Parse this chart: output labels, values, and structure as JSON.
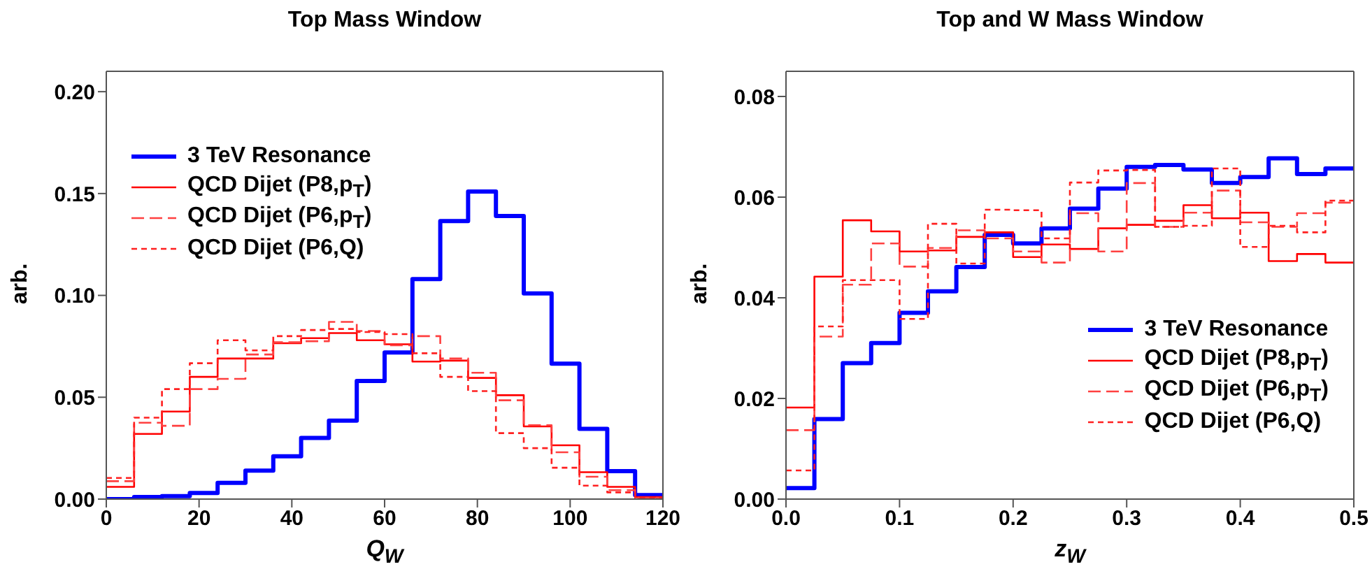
{
  "chart_data": [
    {
      "type": "histogram",
      "title": "Top Mass Window",
      "xlabel": "Q$_{W}$",
      "ylabel": "arb.",
      "bins": [
        0,
        6,
        12,
        18,
        24,
        30,
        36,
        42,
        48,
        54,
        60,
        66,
        72,
        78,
        84,
        90,
        96,
        102,
        108,
        114,
        120
      ],
      "series": [
        {
          "name": "3 TeV Resonance",
          "color": "#0000ff",
          "line_style": "solid",
          "values": [
            0.0,
            0.001,
            0.0015,
            0.003,
            0.008,
            0.014,
            0.021,
            0.03,
            0.0385,
            0.058,
            0.072,
            0.108,
            0.1365,
            0.151,
            0.139,
            0.101,
            0.0665,
            0.0345,
            0.0137,
            0.002
          ]
        },
        {
          "name": "QCD Dijet (P8,p$_{T}$)",
          "color": "#ff0000",
          "line_style": "solid",
          "values": [
            0.006,
            0.032,
            0.043,
            0.06,
            0.069,
            0.069,
            0.0765,
            0.079,
            0.0815,
            0.078,
            0.076,
            0.0675,
            0.068,
            0.0595,
            0.051,
            0.0357,
            0.0264,
            0.0132,
            0.006,
            0.001
          ]
        },
        {
          "name": "QCD Dijet (P6,p$_{T}$)",
          "color": "#ff4040",
          "line_style": "dashed",
          "values": [
            0.0088,
            0.0375,
            0.036,
            0.054,
            0.059,
            0.071,
            0.077,
            0.0775,
            0.087,
            0.0825,
            0.0755,
            0.08,
            0.069,
            0.062,
            0.0485,
            0.0363,
            0.023,
            0.011,
            0.0044,
            0.0007
          ]
        },
        {
          "name": "QCD Dijet (P6,Q)",
          "color": "#ff2020",
          "line_style": "dotted",
          "values": [
            0.0104,
            0.04,
            0.054,
            0.0667,
            0.078,
            0.073,
            0.08,
            0.083,
            0.0835,
            0.082,
            0.081,
            0.0716,
            0.06,
            0.053,
            0.0324,
            0.025,
            0.0154,
            0.0066,
            0.0033,
            0.0007
          ]
        }
      ],
      "xlim": [
        0,
        120
      ],
      "xticks": [
        0,
        20,
        40,
        60,
        80,
        100,
        120
      ],
      "ylim": [
        0,
        0.21
      ],
      "yticks": [
        {
          "value": 0,
          "label": "0.00"
        },
        {
          "value": 0.05,
          "label": "0.05"
        },
        {
          "value": 0.1,
          "label": "0.10"
        },
        {
          "value": 0.15,
          "label": "0.15"
        },
        {
          "value": 0.2,
          "label": "0.20"
        }
      ],
      "legend": "top left",
      "grid": false
    },
    {
      "type": "histogram",
      "title": "Top and W Mass Window",
      "xlabel": "z$_{W}$",
      "ylabel": "arb.",
      "bins": [
        0,
        0.025,
        0.05,
        0.075,
        0.1,
        0.125,
        0.15,
        0.175,
        0.2,
        0.225,
        0.25,
        0.275,
        0.3,
        0.325,
        0.35,
        0.375,
        0.4,
        0.425,
        0.45,
        0.475,
        0.5
      ],
      "series": [
        {
          "name": "3 TeV Resonance",
          "color": "#0000ff",
          "line_style": "solid",
          "values": [
            0.0022,
            0.0159,
            0.027,
            0.031,
            0.037,
            0.0413,
            0.0461,
            0.0525,
            0.0508,
            0.0538,
            0.0577,
            0.0617,
            0.066,
            0.0664,
            0.0655,
            0.0628,
            0.064,
            0.0677,
            0.0646,
            0.0657
          ]
        },
        {
          "name": "QCD Dijet (P8,p$_{T}$)",
          "color": "#ff0000",
          "line_style": "solid",
          "values": [
            0.0182,
            0.0442,
            0.0554,
            0.0532,
            0.0492,
            0.0494,
            0.0521,
            0.053,
            0.0481,
            0.0506,
            0.0497,
            0.0538,
            0.0545,
            0.0553,
            0.0584,
            0.0558,
            0.0569,
            0.0473,
            0.0487,
            0.047
          ]
        },
        {
          "name": "QCD Dijet (P6,p$_{T}$)",
          "color": "#ff4040",
          "line_style": "dashed",
          "values": [
            0.0137,
            0.0323,
            0.0426,
            0.0508,
            0.0462,
            0.0499,
            0.0534,
            0.0518,
            0.0492,
            0.047,
            0.0568,
            0.0492,
            0.0628,
            0.0541,
            0.0569,
            0.0613,
            0.055,
            0.0541,
            0.0568,
            0.0589
          ]
        },
        {
          "name": "QCD Dijet (P6,Q)",
          "color": "#ff2020",
          "line_style": "dotted",
          "values": [
            0.0057,
            0.0343,
            0.0435,
            0.0435,
            0.0358,
            0.0547,
            0.0468,
            0.0575,
            0.0574,
            0.0518,
            0.0629,
            0.0653,
            0.0654,
            0.0541,
            0.0543,
            0.0657,
            0.0501,
            0.0543,
            0.053,
            0.0593
          ]
        }
      ],
      "xlim": [
        0,
        0.5
      ],
      "xticks": [
        {
          "value": 0,
          "label": "0.0"
        },
        {
          "value": 0.1,
          "label": "0.1"
        },
        {
          "value": 0.2,
          "label": "0.2"
        },
        {
          "value": 0.3,
          "label": "0.3"
        },
        {
          "value": 0.4,
          "label": "0.4"
        },
        {
          "value": 0.5,
          "label": "0.5"
        }
      ],
      "ylim": [
        0,
        0.085
      ],
      "yticks": [
        {
          "value": 0,
          "label": "0.00"
        },
        {
          "value": 0.02,
          "label": "0.02"
        },
        {
          "value": 0.04,
          "label": "0.04"
        },
        {
          "value": 0.06,
          "label": "0.06"
        },
        {
          "value": 0.08,
          "label": "0.08"
        }
      ],
      "legend": "bottom right",
      "grid": false
    }
  ]
}
